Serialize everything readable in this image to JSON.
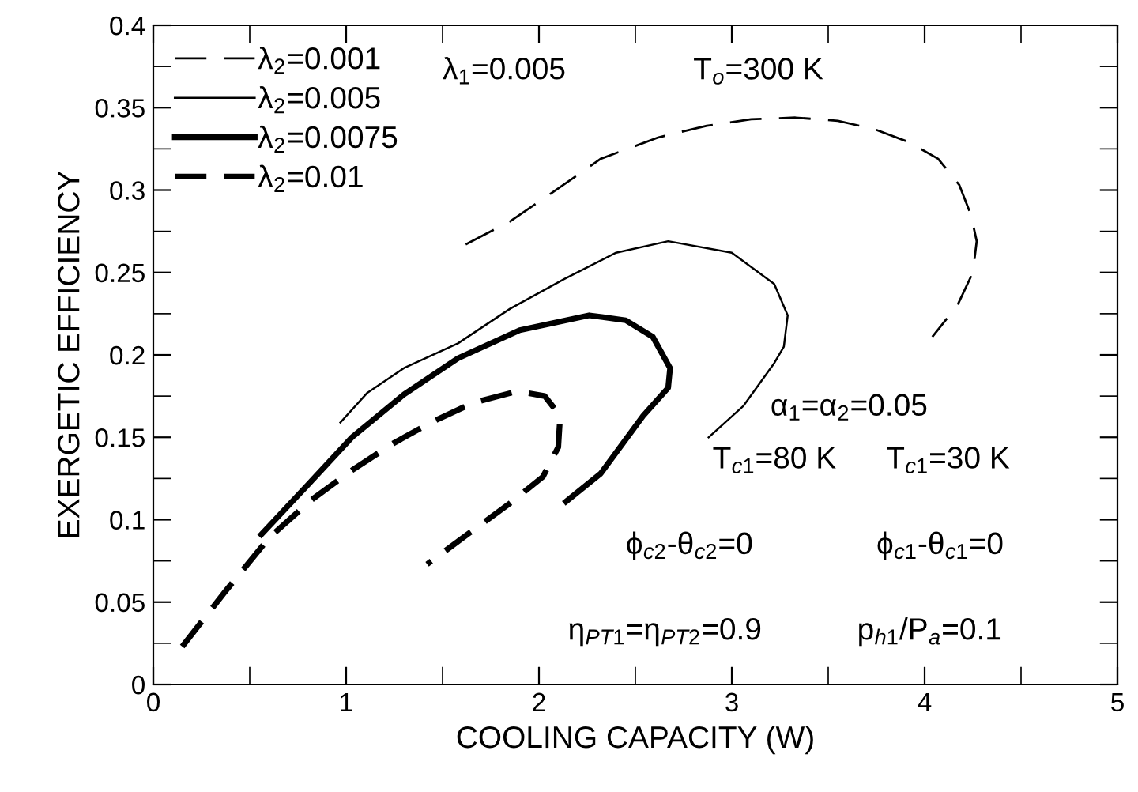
{
  "chart_data": {
    "type": "line",
    "xlabel": "COOLING CAPACITY (W)",
    "ylabel": "EXERGETIC EFFICIENCY",
    "xlim": [
      0,
      5
    ],
    "ylim": [
      0,
      0.4
    ],
    "xticks": [
      0,
      {
        "value": 0.5,
        "label": null
      },
      1,
      {
        "value": 1.5,
        "label": null
      },
      2,
      {
        "value": 2.5,
        "label": null
      },
      3,
      {
        "value": 3.5,
        "label": null
      },
      4,
      {
        "value": 4.5,
        "label": null
      },
      5
    ],
    "yticks": [
      0,
      {
        "value": 0.025,
        "label": null
      },
      0.05,
      {
        "value": 0.075,
        "label": null
      },
      0.1,
      {
        "value": 0.125,
        "label": null
      },
      0.15,
      {
        "value": 0.175,
        "label": null
      },
      0.2,
      {
        "value": 0.225,
        "label": null
      },
      0.25,
      {
        "value": 0.275,
        "label": null
      },
      0.3,
      {
        "value": 0.325,
        "label": null
      },
      0.35,
      {
        "value": 0.375,
        "label": null
      },
      0.4
    ],
    "grid": false,
    "legend": "top left",
    "marker": "none",
    "series": [
      {
        "name": "λ$_{2}$=0.001",
        "color": "#000000",
        "line_style": "dashed",
        "x": [
          1.62,
          1.85,
          2.1,
          2.32,
          2.62,
          2.87,
          3.1,
          3.33,
          3.55,
          3.74,
          3.92,
          4.07,
          4.18,
          4.24,
          4.27,
          4.25,
          4.17,
          4.04
        ],
        "values": [
          0.267,
          0.281,
          0.301,
          0.319,
          0.332,
          0.339,
          0.343,
          0.344,
          0.342,
          0.337,
          0.329,
          0.319,
          0.303,
          0.285,
          0.269,
          0.25,
          0.23,
          0.211
        ]
      },
      {
        "name": "λ$_{2}$=0.005",
        "color": "#000000",
        "line_style": "solid",
        "x": [
          0.97,
          1.11,
          1.3,
          1.58,
          1.85,
          2.13,
          2.4,
          2.67,
          3.0,
          3.22,
          3.29,
          3.27,
          3.22,
          3.06,
          2.88
        ],
        "values": [
          0.159,
          0.177,
          0.192,
          0.207,
          0.228,
          0.246,
          0.262,
          0.269,
          0.262,
          0.243,
          0.224,
          0.205,
          0.195,
          0.169,
          0.15
        ]
      },
      {
        "name": "λ$_{2}$=0.0075",
        "color": "#000000",
        "line_style": "solid",
        "x": [
          0.56,
          0.8,
          1.03,
          1.3,
          1.58,
          1.9,
          2.26,
          2.45,
          2.59,
          2.68,
          2.67,
          2.54,
          2.32,
          2.14
        ],
        "values": [
          0.091,
          0.121,
          0.15,
          0.176,
          0.198,
          0.215,
          0.224,
          0.221,
          0.211,
          0.192,
          0.18,
          0.163,
          0.128,
          0.111
        ]
      },
      {
        "name": "λ$_{2}$=0.01",
        "color": "#000000",
        "line_style": "dashed",
        "x": [
          0.15,
          0.37,
          0.6,
          0.82,
          1.03,
          1.24,
          1.44,
          1.66,
          1.89,
          2.03,
          2.11,
          2.1,
          2.02,
          1.85,
          1.64,
          1.42
        ],
        "values": [
          0.023,
          0.056,
          0.089,
          0.112,
          0.13,
          0.146,
          0.159,
          0.171,
          0.178,
          0.175,
          0.163,
          0.144,
          0.126,
          0.11,
          0.092,
          0.073
        ]
      }
    ],
    "annotations": [
      "λ$_{1}$=0.005",
      "T$_{o}$=300 K",
      "α$_{1}$=α$_{2}$=0.05",
      "T$_{c1}$=80 K",
      "T$_{c1}$=30 K",
      "ϕ$_{c2}$-θ$_{c2}$=0",
      "ϕ$_{c1}$-θ$_{c1}$=0",
      "η$_{PT1}$=η$_{PT2}$=0.9",
      "p$_{h1}$/P$_{a}$=0.1"
    ]
  }
}
